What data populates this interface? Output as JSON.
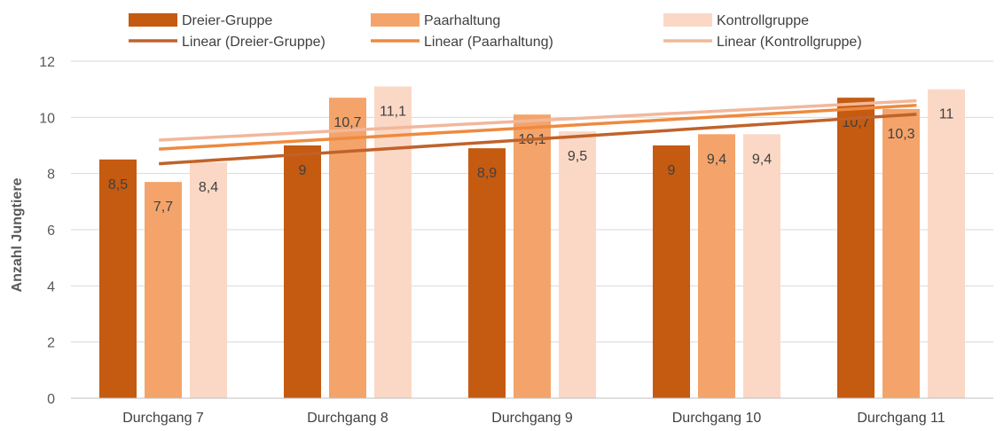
{
  "chart_data": {
    "type": "bar",
    "categories": [
      "Durchgang 7",
      "Durchgang 8",
      "Durchgang 9",
      "Durchgang 10",
      "Durchgang 11"
    ],
    "series": [
      {
        "name": "Dreier-Gruppe",
        "values": [
          8.5,
          9,
          8.9,
          9,
          10.7
        ],
        "labels": [
          "8,5",
          "9",
          "8,9",
          "9",
          "10,7"
        ],
        "color": "#c55a11"
      },
      {
        "name": "Paarhaltung",
        "values": [
          7.7,
          10.7,
          10.1,
          9.4,
          10.3
        ],
        "labels": [
          "7,7",
          "10,7",
          "10,1",
          "9,4",
          "10,3"
        ],
        "color": "#f4a46a"
      },
      {
        "name": "Kontrollgruppe",
        "values": [
          8.4,
          11.1,
          9.5,
          9.4,
          11
        ],
        "labels": [
          "8,4",
          "11,1",
          "9,5",
          "9,4",
          "11"
        ],
        "color": "#fbd8c5"
      }
    ],
    "trendlines": [
      {
        "name": "Linear (Dreier-Gruppe)",
        "start": 8.35,
        "end": 10.11,
        "color": "#c0622a"
      },
      {
        "name": "Linear (Paarhaltung)",
        "start": 8.87,
        "end": 10.43,
        "color": "#ee8a3f"
      },
      {
        "name": "Linear (Kontrollgruppe)",
        "start": 9.19,
        "end": 10.59,
        "color": "#f2b79b"
      }
    ],
    "ylabel": "Anzahl Jungtiere",
    "ylim": [
      0,
      12
    ],
    "yticks": [
      0,
      2,
      4,
      6,
      8,
      10,
      12
    ],
    "grid": true,
    "legend_position": "top"
  }
}
